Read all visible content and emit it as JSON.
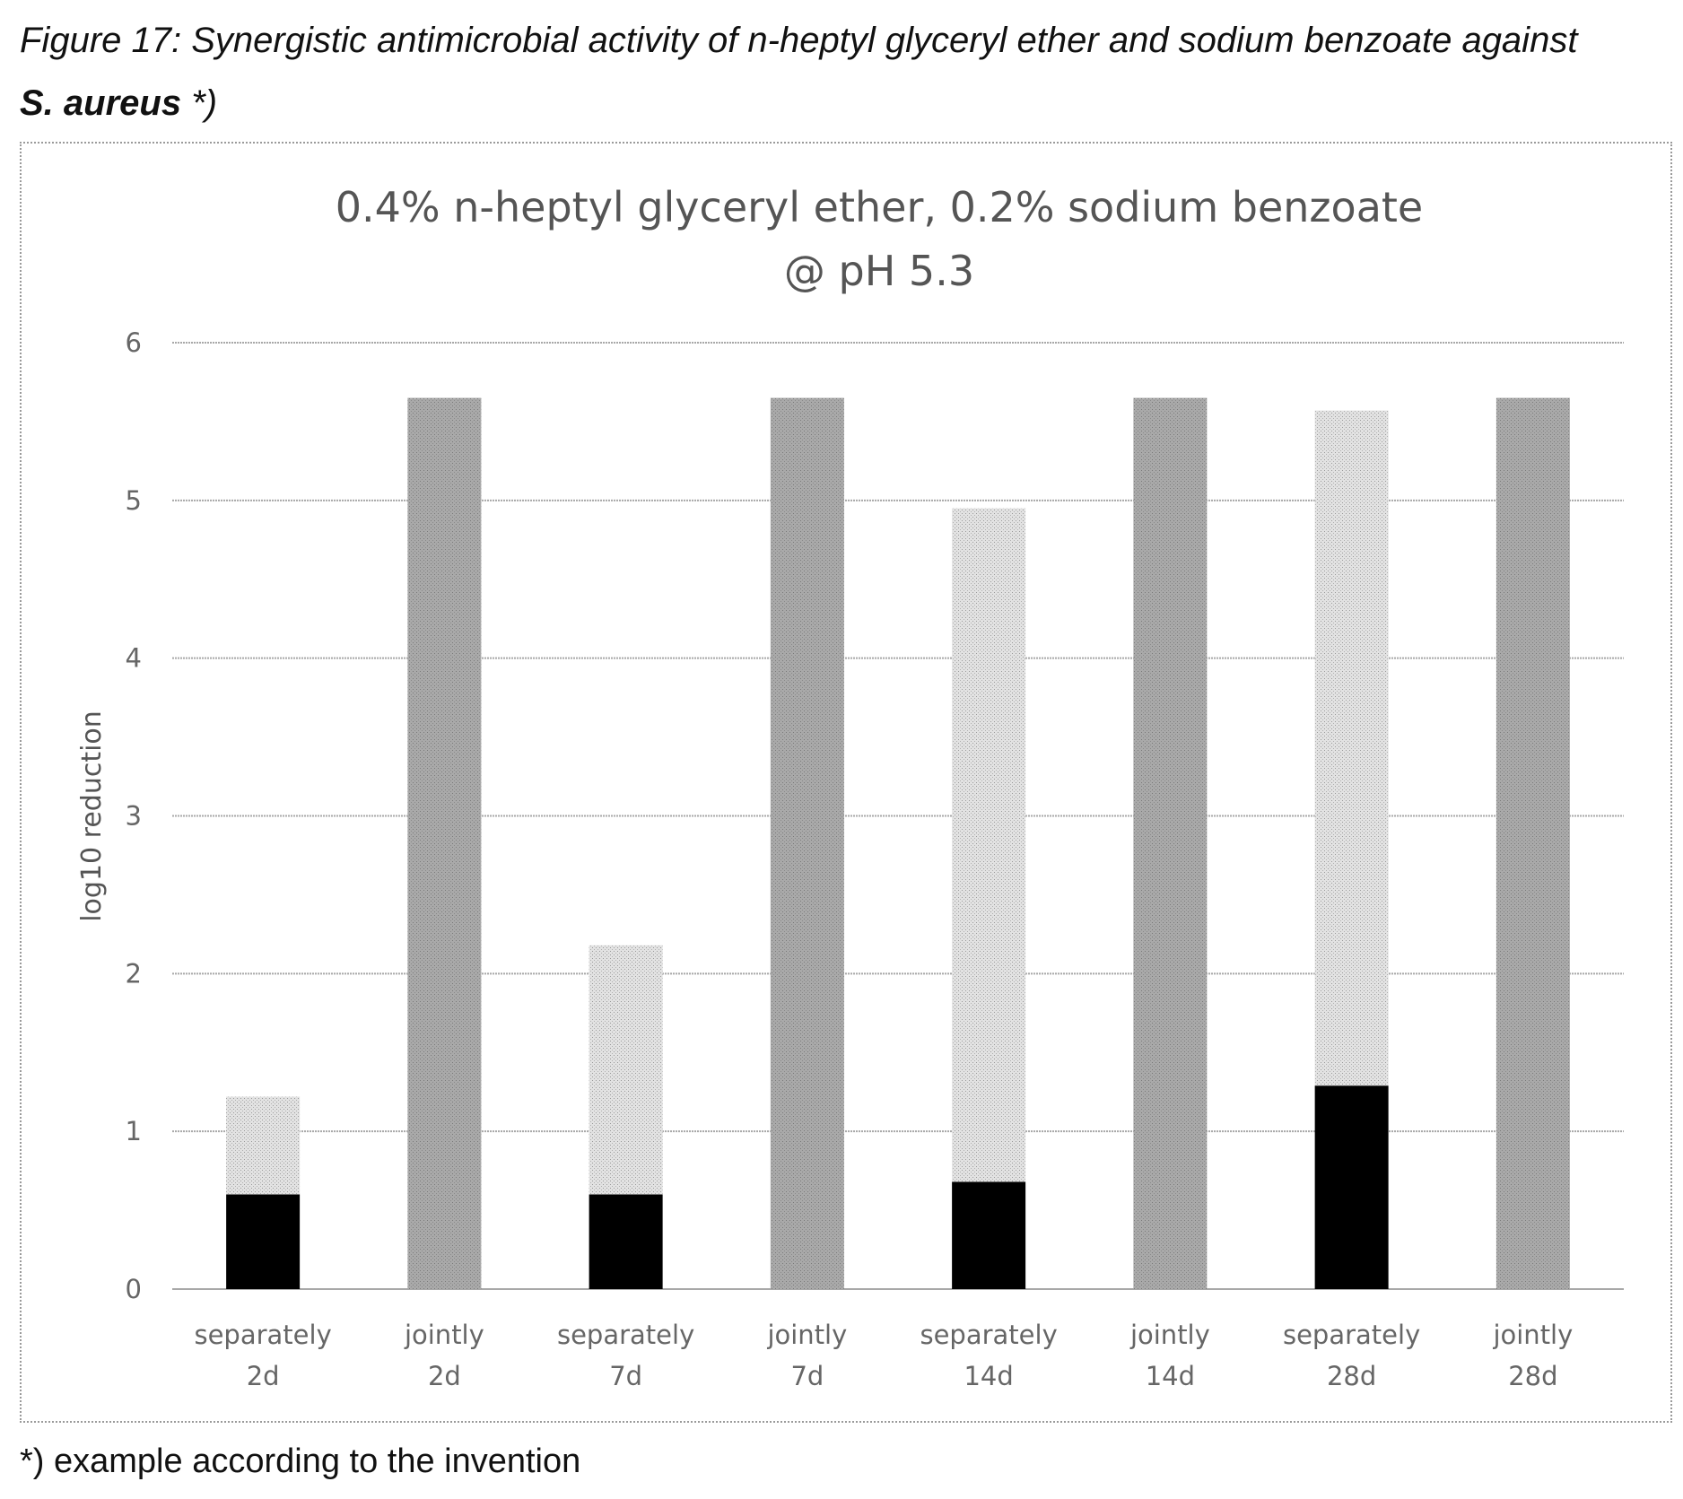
{
  "caption": {
    "line1": "Figure 17: Synergistic antimicrobial activity of n-heptyl glyceryl ether and sodium benzoate against",
    "organism": "S. aureus",
    "marker": "*)"
  },
  "footnote": "*) example according to the invention",
  "chart_data": {
    "type": "bar",
    "stacked": true,
    "title_line1": "0.4% n-heptyl glyceryl ether, 0.2% sodium benzoate",
    "title_line2": "@ pH 5.3",
    "xlabel": "",
    "ylabel": "log10 reduction",
    "ylim": [
      0,
      6
    ],
    "yticks": [
      "0",
      "1",
      "2",
      "3",
      "4",
      "5",
      "6"
    ],
    "grid": true,
    "legend": "none",
    "categories": [
      {
        "line1": "separately",
        "line2": "2d"
      },
      {
        "line1": "jointly",
        "line2": "2d"
      },
      {
        "line1": "separately",
        "line2": "7d"
      },
      {
        "line1": "jointly",
        "line2": "7d"
      },
      {
        "line1": "separately",
        "line2": "14d"
      },
      {
        "line1": "jointly",
        "line2": "14d"
      },
      {
        "line1": "separately",
        "line2": "28d"
      },
      {
        "line1": "jointly",
        "line2": "28d"
      }
    ],
    "series": [
      {
        "color": "#000000",
        "values": [
          0.6,
          0,
          0.6,
          0,
          0.68,
          0,
          1.29,
          0
        ]
      },
      {
        "color": "#cfcfcf",
        "values": [
          0.62,
          0,
          1.58,
          0,
          4.27,
          0,
          4.28,
          0
        ]
      },
      {
        "color": "#a6a6a6",
        "values": [
          0,
          5.65,
          0,
          5.65,
          0,
          5.65,
          0,
          5.65
        ]
      }
    ]
  }
}
